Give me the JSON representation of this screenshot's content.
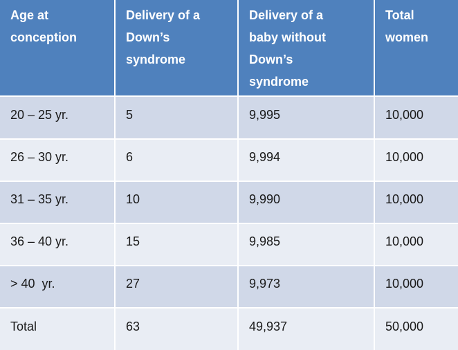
{
  "table": {
    "header": [
      [
        "Age at",
        "conception"
      ],
      [
        "Delivery of a",
        "Down’s",
        "syndrome"
      ],
      [
        "Delivery of a",
        "baby without",
        "Down’s",
        "syndrome"
      ],
      [
        "Total",
        "women"
      ]
    ],
    "rows": [
      [
        "20 – 25 yr.",
        "5",
        "9,995",
        "10,000"
      ],
      [
        "26 – 30 yr.",
        "6",
        "9,994",
        "10,000"
      ],
      [
        "31 – 35 yr.",
        "10",
        "9,990",
        "10,000"
      ],
      [
        "36 – 40 yr.",
        "15",
        "9,985",
        "10,000"
      ],
      [
        "> 40  yr.",
        "27",
        "9,973",
        "10,000"
      ],
      [
        "Total",
        "63",
        "49,937",
        "50,000"
      ]
    ]
  }
}
